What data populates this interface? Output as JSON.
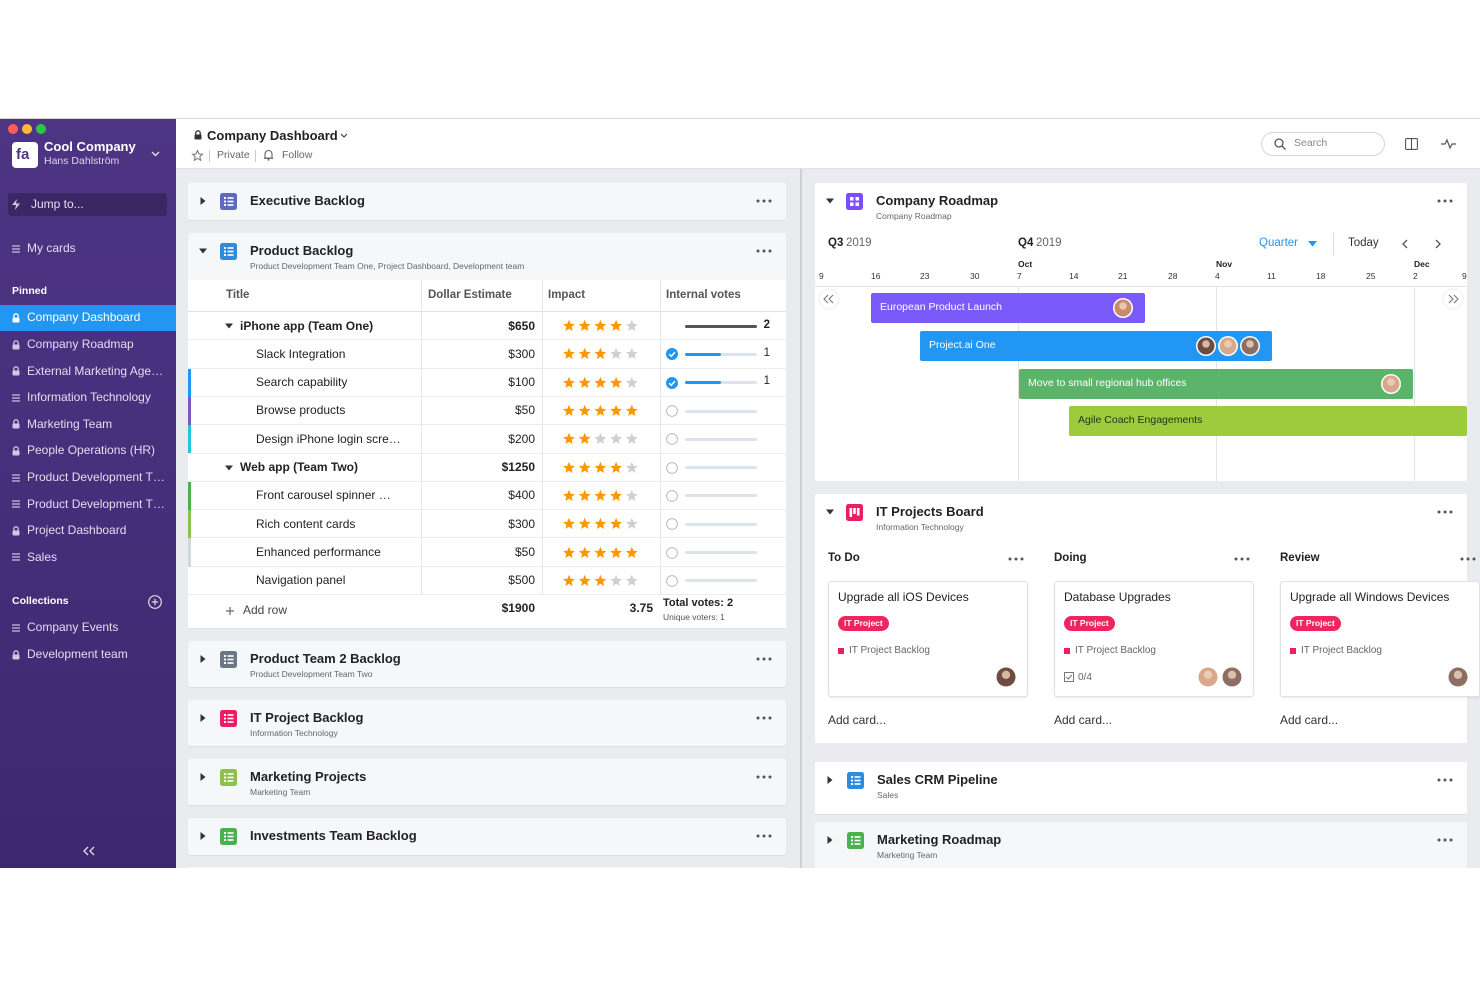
{
  "sidebar": {
    "logo": "fa",
    "company": "Cool Company",
    "user": "Hans Dahlström",
    "jump": "Jump to...",
    "my_cards": "My cards",
    "pinned_heading": "Pinned",
    "pinned": [
      {
        "label": "Company Dashboard",
        "icon": "lock",
        "active": true
      },
      {
        "label": "Company Roadmap",
        "icon": "lock"
      },
      {
        "label": "External Marketing Age…",
        "icon": "lock"
      },
      {
        "label": "Information Technology",
        "icon": "list"
      },
      {
        "label": "Marketing Team",
        "icon": "lock"
      },
      {
        "label": "People Operations (HR)",
        "icon": "lock"
      },
      {
        "label": "Product Development T…",
        "icon": "list"
      },
      {
        "label": "Product Development T…",
        "icon": "list"
      },
      {
        "label": "Project Dashboard",
        "icon": "lock"
      },
      {
        "label": "Sales",
        "icon": "list"
      }
    ],
    "collections_heading": "Collections",
    "collections": [
      {
        "label": "Company Events",
        "icon": "list"
      },
      {
        "label": "Development team",
        "icon": "lock"
      }
    ]
  },
  "header": {
    "title": "Company Dashboard",
    "privacy": "Private",
    "follow": "Follow",
    "search": "Search"
  },
  "left_panels": [
    {
      "title": "Executive Backlog",
      "color": "#5c6bc0",
      "expanded": false
    },
    {
      "title": "Product Backlog",
      "subtitle": "Product Development Team One, Project Dashboard, Development team",
      "color": "#2d8be0",
      "expanded": true
    },
    {
      "title": "Product Team 2 Backlog",
      "subtitle": "Product Development Team Two",
      "color": "#6b7785",
      "expanded": false
    },
    {
      "title": "IT Project Backlog",
      "subtitle": "Information Technology",
      "color": "#e91e63",
      "expanded": false
    },
    {
      "title": "Marketing Projects",
      "subtitle": "Marketing Team",
      "color": "#8bc34a",
      "expanded": false
    },
    {
      "title": "Investments Team Backlog",
      "color": "#4caf50",
      "expanded": false
    }
  ],
  "table": {
    "columns": [
      "Title",
      "Dollar Estimate",
      "Impact",
      "Internal votes"
    ],
    "rows": [
      {
        "title": "iPhone app (Team One)",
        "dollar": "$650",
        "impact": 4,
        "votes": 2,
        "group": true
      },
      {
        "title": "Slack Integration",
        "dollar": "$300",
        "impact": 3,
        "votes": 1
      },
      {
        "title": "Search capability",
        "dollar": "$100",
        "impact": 4,
        "votes": 1,
        "color": "#2196f3"
      },
      {
        "title": "Browse products",
        "dollar": "$50",
        "impact": 5,
        "color": "#7e57c2"
      },
      {
        "title": "Design iPhone login scre…",
        "dollar": "$200",
        "impact": 2,
        "color": "#26c6da"
      },
      {
        "title": "Web app (Team Two)",
        "dollar": "$1250",
        "impact": 4,
        "group": true
      },
      {
        "title": "Front carousel spinner …",
        "dollar": "$400",
        "impact": 4,
        "color": "#4caf50"
      },
      {
        "title": "Rich content cards",
        "dollar": "$300",
        "impact": 4,
        "color": "#8bc34a"
      },
      {
        "title": "Enhanced performance",
        "dollar": "$50",
        "impact": 5,
        "color": "#cfd8dc"
      },
      {
        "title": "Navigation panel",
        "dollar": "$500",
        "impact": 3
      }
    ],
    "add_row": "Add row",
    "total_dollar": "$1900",
    "avg_impact": "3.75",
    "total_votes": "Total votes: 2",
    "unique_voters": "Unique voters: 1"
  },
  "roadmap": {
    "title": "Company Roadmap",
    "subtitle": "Company Roadmap",
    "color": "#7c4dff",
    "quarters": [
      {
        "label": "Q3",
        "year": "2019"
      },
      {
        "label": "Q4",
        "year": "2019"
      }
    ],
    "view": "Quarter",
    "today": "Today",
    "months": [
      "Oct",
      "Nov",
      "Dec"
    ],
    "days": [
      9,
      16,
      23,
      30,
      7,
      14,
      21,
      28,
      4,
      11,
      18,
      25,
      2,
      9
    ],
    "bars": [
      {
        "label": "European Product Launch",
        "color": "#7a5af8",
        "avatars": 1
      },
      {
        "label": "Project.ai One",
        "color": "#2196f3",
        "avatars": 3
      },
      {
        "label": "Move to small regional hub offices",
        "color": "#5cb36a",
        "avatars": 1
      },
      {
        "label": "Agile Coach Engagements",
        "color": "#9ccc3b",
        "avatars": 0
      }
    ]
  },
  "board": {
    "title": "IT Projects Board",
    "subtitle": "Information Technology",
    "color": "#e91e63",
    "add_card": "Add card...",
    "columns": [
      {
        "name": "To Do",
        "cards": [
          {
            "title": "Upgrade all iOS Devices",
            "tag": "IT Project",
            "source": "IT Project Backlog",
            "avatars": 1
          }
        ]
      },
      {
        "name": "Doing",
        "cards": [
          {
            "title": "Database Upgrades",
            "tag": "IT Project",
            "source": "IT Project Backlog",
            "checklist": "0/4",
            "avatars": 2
          }
        ]
      },
      {
        "name": "Review",
        "cards": [
          {
            "title": "Upgrade all Windows Devices",
            "tag": "IT Project",
            "source": "IT Project Backlog",
            "avatars": 1
          }
        ]
      }
    ]
  },
  "right_panels": [
    {
      "title": "Sales CRM Pipeline",
      "subtitle": "Sales",
      "color": "#2d8be0",
      "expanded": false
    },
    {
      "title": "Marketing Roadmap",
      "subtitle": "Marketing Team",
      "color": "#4caf50",
      "expanded": false
    }
  ]
}
